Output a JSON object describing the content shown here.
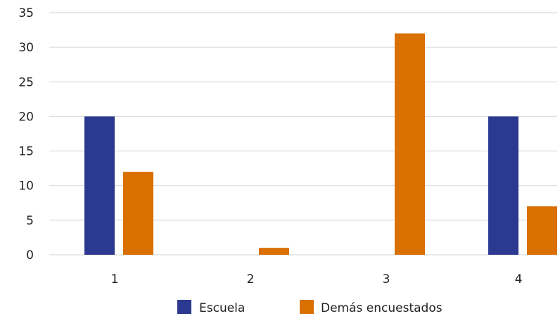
{
  "chart_data": {
    "type": "bar",
    "categories": [
      "1",
      "2",
      "3",
      "4"
    ],
    "series": [
      {
        "name": "Escuela",
        "color": "#2b3990",
        "values": [
          20,
          0,
          0,
          20
        ]
      },
      {
        "name": "Demás encuestados",
        "color": "#d97000",
        "values": [
          12,
          1,
          32,
          7
        ]
      }
    ],
    "ylim": [
      0,
      35
    ],
    "yticks": [
      0,
      5,
      10,
      15,
      20,
      25,
      30,
      35
    ],
    "grid": true,
    "gridColor": "#e0e0e0",
    "legend": "bottom"
  }
}
